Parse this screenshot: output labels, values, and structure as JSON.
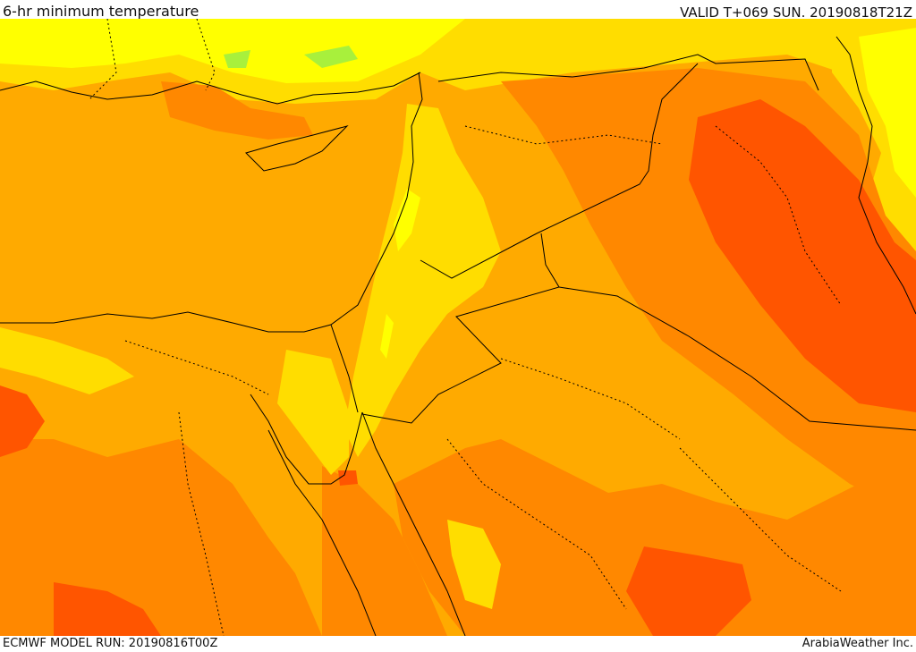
{
  "header": {
    "title": "6-hr minimum temperature",
    "valid_time": "VALID T+069 SUN. 20190818T21Z"
  },
  "footer": {
    "model_run": "ECMWF MODEL RUN: 20190816T00Z",
    "credit": "ArabiaWeather Inc."
  },
  "colors": {
    "background": "#ffffff",
    "band_light_green": "#a8f03c",
    "band_yellow": "#ffff00",
    "band_gold": "#ffdd00",
    "band_amber": "#ffaa00",
    "band_orange": "#ff8800",
    "band_red_orange": "#ff5500",
    "borders": "#000000"
  }
}
